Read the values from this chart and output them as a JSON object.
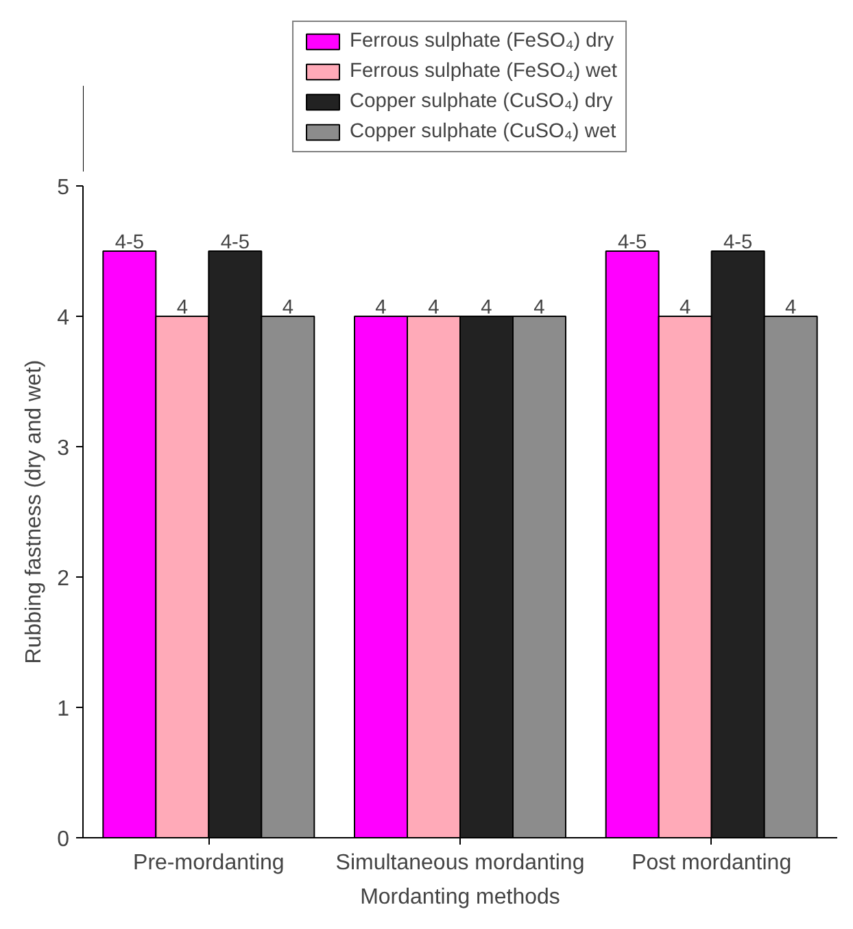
{
  "chart_data": {
    "type": "bar",
    "xlabel": "Mordanting methods",
    "ylabel": "Rubbing fastness (dry and wet)",
    "categories": [
      "Pre-mordanting",
      "Simultaneous mordanting",
      "Post mordanting"
    ],
    "series": [
      {
        "name": "Ferrous sulphate (FeSO₄) dry",
        "color": "#ff00ff",
        "values": [
          4.5,
          4,
          4.5
        ],
        "value_labels": [
          "4-5",
          "4",
          "4-5"
        ]
      },
      {
        "name": "Ferrous sulphate (FeSO₄) wet",
        "color": "#ffaab8",
        "values": [
          4,
          4,
          4
        ],
        "value_labels": [
          "4",
          "4",
          "4"
        ]
      },
      {
        "name": "Copper sulphate (CuSO₄) dry",
        "color": "#222222",
        "values": [
          4.5,
          4,
          4.5
        ],
        "value_labels": [
          "4-5",
          "4",
          "4-5"
        ]
      },
      {
        "name": "Copper sulphate (CuSO₄) wet",
        "color": "#8c8c8c",
        "values": [
          4,
          4,
          4
        ],
        "value_labels": [
          "4",
          "4",
          "4"
        ]
      }
    ],
    "ylim": [
      0,
      5
    ],
    "yticks": [
      0,
      1,
      2,
      3,
      4,
      5
    ],
    "grid": false,
    "legend": "top"
  }
}
